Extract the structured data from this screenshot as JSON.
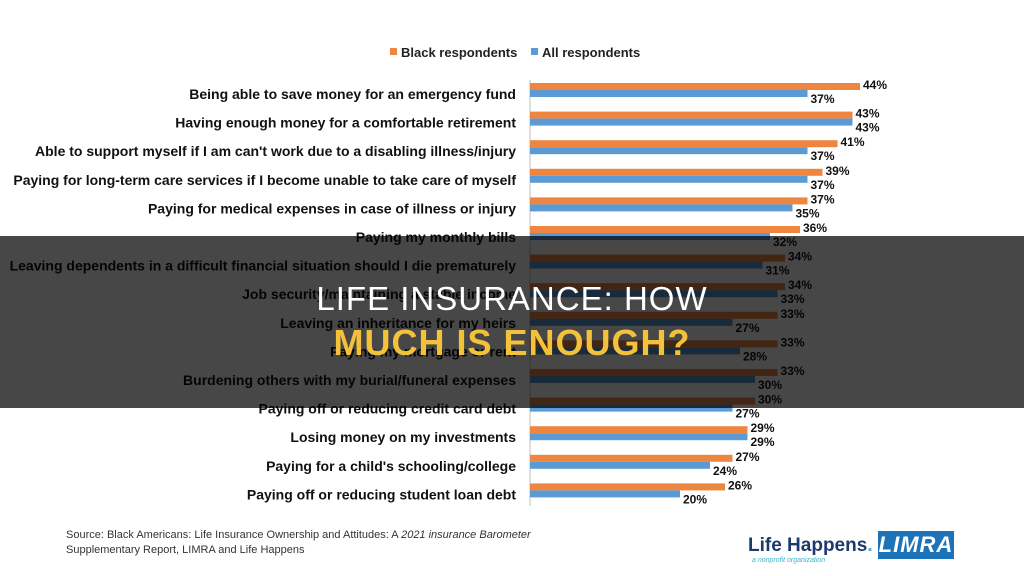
{
  "chart_data": {
    "type": "bar",
    "orientation": "horizontal",
    "categories": [
      "Being able to save money for an emergency fund",
      "Having enough money for a comfortable retirement",
      "Able to support myself if I am can't work due to a disabling illness/injury",
      "Paying for long-term care services if I become unable to take care of myself",
      "Paying for medical expenses in case of illness or injury",
      "Paying my monthly bills",
      "Leaving dependents in a difficult financial situation should I die prematurely",
      "Job security/maintaining a stable income",
      "Leaving an inheritance for my heirs",
      "Paying my mortgage or rent",
      "Burdening others with my burial/funeral expenses",
      "Paying off or reducing credit card debt",
      "Losing money on my investments",
      "Paying for a child's schooling/college",
      "Paying off or reducing student loan debt"
    ],
    "series": [
      {
        "name": "Black respondents",
        "color": "#ee8640",
        "values": [
          44,
          43,
          41,
          39,
          37,
          36,
          34,
          34,
          33,
          33,
          33,
          30,
          29,
          27,
          26
        ],
        "labels": [
          "44%",
          "43%",
          "41%",
          "39%",
          "37%",
          "36%",
          "34%",
          "34%",
          "33%",
          "33%",
          "33%",
          "30%",
          "29%",
          "27%",
          "26%"
        ]
      },
      {
        "name": "All respondents",
        "color": "#5b9bd5",
        "values": [
          37,
          43,
          37,
          37,
          35,
          32,
          31,
          33,
          27,
          28,
          30,
          27,
          29,
          24,
          20
        ],
        "labels": [
          "37%",
          "43%",
          "37%",
          "37%",
          "35%",
          "32%",
          "31%",
          "33%",
          "27%",
          "28%",
          "30%",
          "27%",
          "29%",
          "24%",
          "20%"
        ]
      }
    ],
    "xlim": [
      0,
      50
    ],
    "grid": false,
    "legend_position": "top"
  },
  "overlay": {
    "title_line1": "LIFE INSURANCE: HOW",
    "title_line2": "MUCH IS ENOUGH?"
  },
  "source": {
    "prefix": "Source: Black Americans: Life Insurance Ownership and Attitudes: A ",
    "italic": "2021 insurance Barometer",
    "suffix": "Supplementary Report, LIMRA and Life Happens"
  },
  "logos": {
    "life_happens": "Life Happens",
    "life_happens_tagline": "a nonprofit organization",
    "limra": "LIMRA"
  }
}
